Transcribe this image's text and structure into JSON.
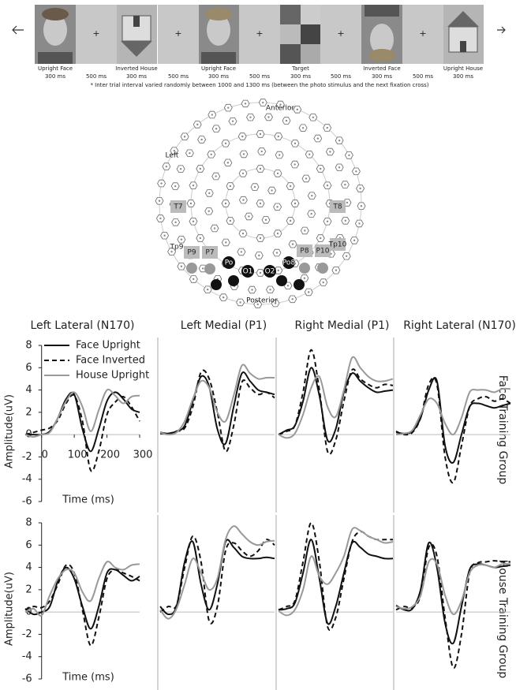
{
  "stimulus_sequence": {
    "stimuli": [
      {
        "label": "Upright Face",
        "duration": "300 ms"
      },
      {
        "label": "Inverted House",
        "duration": "300 ms"
      },
      {
        "label": "Upright Face",
        "duration": "300 ms"
      },
      {
        "label": "Target",
        "duration": "300 ms"
      },
      {
        "label": "Inverted Face",
        "duration": "300 ms"
      },
      {
        "label": "Upright House",
        "duration": "300 ms"
      }
    ],
    "fixation": {
      "symbol": "+",
      "duration": "500 ms"
    },
    "note": "* Inter trial interval varied randomly between 1000 and 1300 ms (between the photo stimulus and the next fixation cross)"
  },
  "electrode_map": {
    "labels": {
      "anterior": "Anterior",
      "left": "Left",
      "posterior": "Posterior",
      "t7": "T7",
      "t8": "T8",
      "tp9": "Tp9",
      "p9": "P9",
      "p7": "P7",
      "p8": "P8",
      "p10": "P10",
      "tp10": "Tp10",
      "po7": "Po",
      "o1": "O1",
      "o2": "O2",
      "po8": "Po8"
    }
  },
  "row_labels": [
    "Face Training Group",
    "House Training Group"
  ],
  "chart_data": [
    {
      "type": "line",
      "title": "Left Lateral (N170)",
      "xlabel": "Time (ms)",
      "ylabel": "Amplitude(uV)",
      "legend": "upper left",
      "x": [
        -50,
        -25,
        0,
        25,
        50,
        75,
        100,
        125,
        150,
        175,
        200,
        225,
        250,
        275,
        300
      ],
      "xlim": [
        -50,
        300
      ],
      "xticks": [
        0,
        100,
        200,
        300
      ],
      "ylim": [
        -6,
        8
      ],
      "yticks": [
        -6,
        -4,
        -2,
        0,
        2,
        4,
        6,
        8
      ],
      "series": [
        {
          "name": "Face Upright",
          "color": "#111111",
          "linestyle": "solid",
          "values": [
            0,
            0,
            0,
            0.3,
            1.5,
            3.2,
            3.6,
            0.5,
            -1.5,
            0.5,
            3,
            3.8,
            3.2,
            2.3,
            2.0
          ]
        },
        {
          "name": "Face Inverted",
          "color": "#111111",
          "linestyle": "dashed",
          "values": [
            0,
            0.2,
            0.4,
            0.6,
            1.3,
            2.8,
            3.5,
            1.2,
            -3.2,
            -1.5,
            1.8,
            2.9,
            3.4,
            2.5,
            1.2
          ]
        },
        {
          "name": "House Upright",
          "color": "#999999",
          "linestyle": "solid",
          "values": [
            0,
            -0.2,
            0,
            0.2,
            1.5,
            3,
            3.8,
            2.5,
            0.3,
            2.2,
            4,
            3.5,
            2.8,
            3.4,
            3.5
          ]
        }
      ]
    },
    {
      "type": "line",
      "title": "Left Medial (P1)",
      "x": [
        -50,
        -25,
        0,
        25,
        50,
        75,
        100,
        125,
        150,
        175,
        200,
        225,
        250,
        275,
        300
      ],
      "xlim": [
        -50,
        300
      ],
      "ylim": [
        -6,
        8
      ],
      "series": [
        {
          "color": "#111111",
          "linestyle": "solid",
          "values": [
            0.2,
            0.1,
            0.3,
            0.8,
            3,
            5.2,
            4.3,
            0.5,
            -0.8,
            2.5,
            5.5,
            4.8,
            4,
            3.8,
            3.6
          ]
        },
        {
          "color": "#111111",
          "linestyle": "dashed",
          "values": [
            0.1,
            0.1,
            0.3,
            0.6,
            2.5,
            5.6,
            5,
            2,
            -1.5,
            0.8,
            4.7,
            4.2,
            3.6,
            3.8,
            3.3
          ]
        },
        {
          "color": "#999999",
          "linestyle": "solid",
          "values": [
            0.2,
            0,
            0.2,
            1.2,
            3.2,
            4.8,
            4.2,
            2,
            1.2,
            3.5,
            6.2,
            5.5,
            5,
            5.1,
            5.1
          ]
        }
      ]
    },
    {
      "type": "line",
      "title": "Right Medial (P1)",
      "x": [
        -50,
        -25,
        0,
        25,
        50,
        75,
        100,
        125,
        150,
        175,
        200,
        225,
        250,
        275,
        300
      ],
      "xlim": [
        -50,
        300
      ],
      "ylim": [
        -6,
        8
      ],
      "series": [
        {
          "color": "#111111",
          "linestyle": "solid",
          "values": [
            0,
            0.4,
            0.8,
            3,
            6,
            3.5,
            -0.5,
            0.5,
            3.8,
            5.5,
            4.8,
            4.2,
            3.8,
            3.9,
            4
          ]
        },
        {
          "color": "#111111",
          "linestyle": "dashed",
          "values": [
            0,
            0.3,
            0.8,
            3.8,
            7.6,
            4,
            -1.5,
            -0.5,
            3,
            5.8,
            5,
            4.5,
            4.2,
            4.5,
            4.4
          ]
        },
        {
          "color": "#999999",
          "linestyle": "solid",
          "values": [
            0,
            -0.3,
            0.1,
            1.8,
            4.2,
            5.2,
            2.5,
            1.6,
            4,
            6.9,
            6,
            5.2,
            4.8,
            4.8,
            5
          ]
        }
      ]
    },
    {
      "type": "line",
      "title": "Right Lateral (N170)",
      "x": [
        -50,
        -25,
        0,
        25,
        50,
        75,
        100,
        125,
        150,
        175,
        200,
        225,
        250,
        275,
        300
      ],
      "xlim": [
        -50,
        300
      ],
      "ylim": [
        -6,
        8
      ],
      "series": [
        {
          "color": "#111111",
          "linestyle": "solid",
          "values": [
            0.2,
            0.1,
            0.3,
            1.5,
            4,
            4.8,
            -1,
            -2.5,
            0,
            2.5,
            2.8,
            2.6,
            2.4,
            2.6,
            2.8
          ]
        },
        {
          "color": "#111111",
          "linestyle": "dashed",
          "values": [
            0.3,
            0,
            0.2,
            1.5,
            4.5,
            4.5,
            -2,
            -4.3,
            -1,
            2.5,
            3.2,
            3.4,
            3,
            3.2,
            2.8
          ]
        },
        {
          "color": "#999999",
          "linestyle": "solid",
          "values": [
            0,
            0.1,
            0.4,
            1.8,
            3.2,
            2.8,
            1,
            0,
            1.5,
            3.8,
            4,
            4,
            3.8,
            4.1,
            4.1
          ]
        }
      ]
    },
    {
      "type": "line",
      "xlabel": "Time (ms)",
      "ylabel": "Amplitude(uV)",
      "x": [
        -50,
        -25,
        0,
        25,
        50,
        75,
        100,
        125,
        150,
        175,
        200,
        225,
        250,
        275,
        300
      ],
      "xlim": [
        -50,
        300
      ],
      "ylim": [
        -6,
        8
      ],
      "yticks": [
        -6,
        -4,
        -2,
        0,
        2,
        4,
        6,
        8
      ],
      "series": [
        {
          "color": "#111111",
          "linestyle": "solid",
          "values": [
            0.3,
            -0.2,
            0,
            0.5,
            2.8,
            4,
            3,
            0.5,
            -1.5,
            0.5,
            3.5,
            3.8,
            3.3,
            2.8,
            3.2
          ]
        },
        {
          "color": "#111111",
          "linestyle": "dashed",
          "values": [
            0.2,
            0.5,
            0.4,
            1,
            2.5,
            4.2,
            3.5,
            0.2,
            -3,
            -0.5,
            3,
            3.8,
            3.5,
            3.2,
            2.8
          ]
        },
        {
          "color": "#999999",
          "linestyle": "solid",
          "values": [
            0,
            0.3,
            -0.3,
            1.5,
            3,
            3.8,
            3.5,
            1.8,
            1,
            3,
            4.5,
            4,
            3.8,
            4.2,
            4.3
          ]
        }
      ]
    },
    {
      "type": "line",
      "x": [
        -50,
        -25,
        0,
        25,
        50,
        75,
        100,
        125,
        150,
        175,
        200,
        225,
        250,
        275,
        300
      ],
      "xlim": [
        -50,
        300
      ],
      "ylim": [
        -6,
        8
      ],
      "series": [
        {
          "color": "#111111",
          "linestyle": "solid",
          "values": [
            0.5,
            -0.2,
            0.5,
            4.5,
            6.3,
            2.5,
            0.2,
            2.5,
            6.3,
            5.8,
            5,
            4.8,
            4.8,
            4.9,
            4.8
          ]
        },
        {
          "color": "#111111",
          "linestyle": "dashed",
          "values": [
            0,
            0.5,
            0.6,
            4,
            6.8,
            4.5,
            -0.8,
            0.5,
            5.5,
            6.2,
            5.5,
            5,
            5.5,
            6.5,
            6
          ]
        },
        {
          "color": "#999999",
          "linestyle": "solid",
          "values": [
            0.2,
            -0.6,
            0.3,
            2.5,
            4.8,
            3.5,
            2,
            3,
            6.5,
            7.7,
            7,
            6.3,
            6,
            6.3,
            6.4
          ]
        }
      ]
    },
    {
      "type": "line",
      "x": [
        -50,
        -25,
        0,
        25,
        50,
        75,
        100,
        125,
        150,
        175,
        200,
        225,
        250,
        275,
        300
      ],
      "xlim": [
        -50,
        300
      ],
      "ylim": [
        -6,
        8
      ],
      "series": [
        {
          "color": "#111111",
          "linestyle": "solid",
          "values": [
            0.2,
            0.3,
            0.8,
            3.5,
            6.5,
            3,
            -1,
            0.5,
            3.5,
            6.2,
            5.8,
            5.2,
            5,
            4.8,
            4.8
          ]
        },
        {
          "color": "#111111",
          "linestyle": "dashed",
          "values": [
            0.2,
            0.5,
            1,
            4.5,
            8,
            4.5,
            -1.3,
            -0.5,
            3,
            6.3,
            7.2,
            6.8,
            6.5,
            6.5,
            6.5
          ]
        },
        {
          "color": "#999999",
          "linestyle": "solid",
          "values": [
            0.1,
            -0.3,
            0.2,
            2,
            5,
            3.2,
            2.5,
            3.5,
            5,
            7.4,
            7.3,
            6.8,
            6.5,
            6.2,
            6.3
          ]
        }
      ]
    },
    {
      "type": "line",
      "x": [
        -50,
        -25,
        0,
        25,
        50,
        75,
        100,
        125,
        150,
        175,
        200,
        225,
        250,
        275,
        300
      ],
      "xlim": [
        -50,
        300
      ],
      "ylim": [
        -6,
        8
      ],
      "series": [
        {
          "color": "#111111",
          "linestyle": "solid",
          "values": [
            0.6,
            0.2,
            0.3,
            2,
            6.2,
            4,
            -1,
            -2.8,
            0.5,
            3.8,
            4.3,
            4.2,
            4,
            4.1,
            4.2
          ]
        },
        {
          "color": "#111111",
          "linestyle": "dashed",
          "values": [
            0.2,
            0.5,
            0.4,
            1.5,
            5.8,
            5,
            -0.5,
            -5,
            -2,
            3.5,
            4.4,
            4.5,
            4.6,
            4.5,
            4.5
          ]
        },
        {
          "color": "#999999",
          "linestyle": "solid",
          "values": [
            0.5,
            0.3,
            0.5,
            1.5,
            4.5,
            4.3,
            1.5,
            -0.2,
            1,
            3.5,
            4.2,
            4.2,
            4,
            4.3,
            4.3
          ]
        }
      ]
    }
  ]
}
